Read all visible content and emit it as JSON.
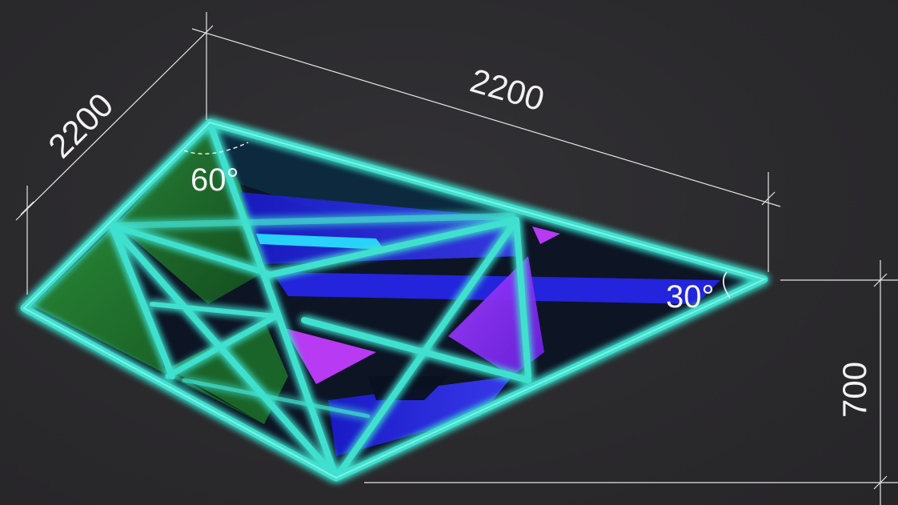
{
  "dimensions": {
    "left_edge": "2200",
    "top_edge": "2200",
    "height": "700"
  },
  "angles": {
    "top_corner": "60°",
    "right_corner": "30°"
  },
  "colors": {
    "background": "#2b2a2d",
    "frame": "#3fe0cf",
    "frame_glow": "#2bd6c4",
    "dimension_lines": "#e6e6e6",
    "panel_green": "#1f7a2e",
    "panel_blue": "#2b2bff",
    "panel_purple": "#8a2cff",
    "panel_magenta": "#c23cff",
    "panel_cyan": "#29e6ff"
  }
}
